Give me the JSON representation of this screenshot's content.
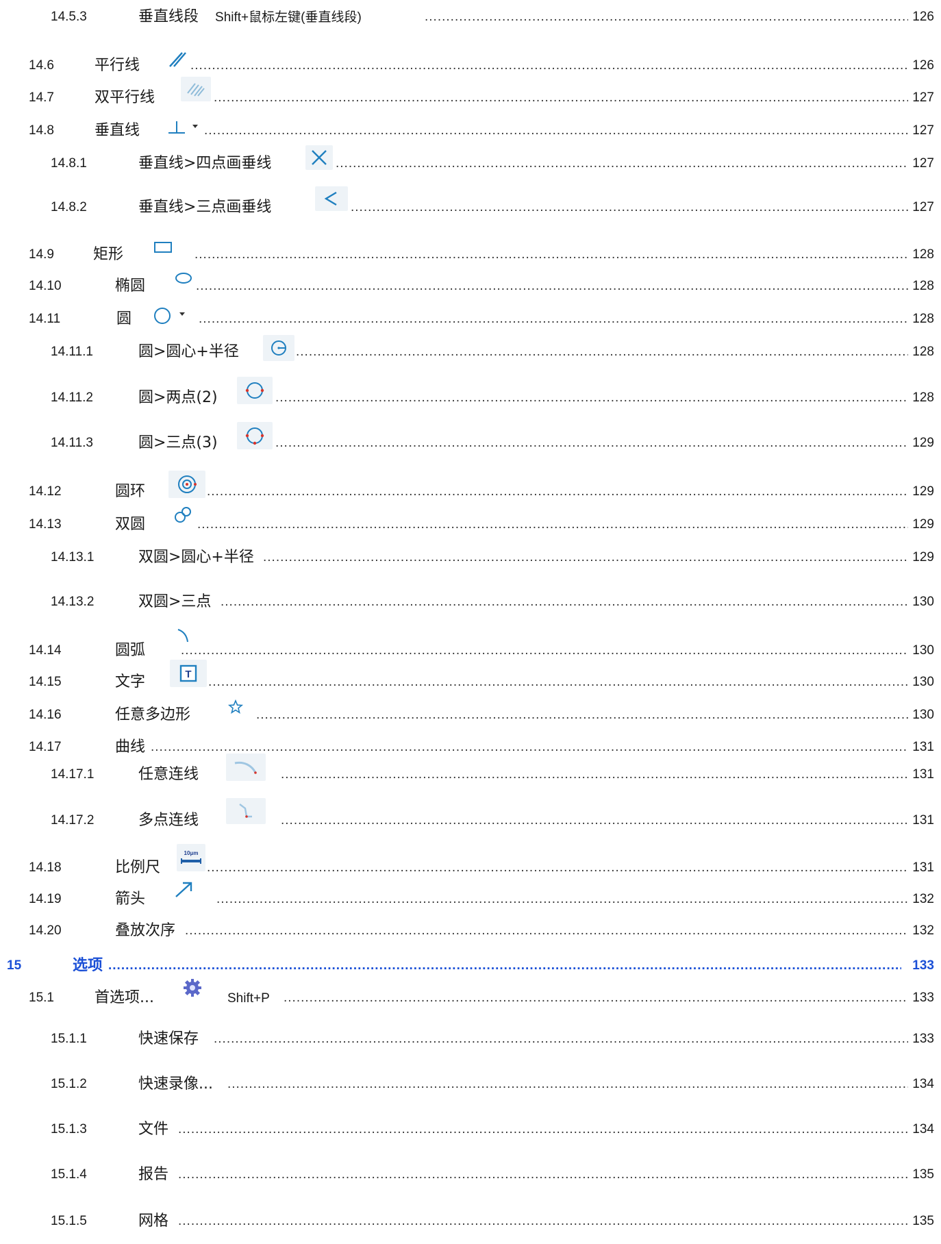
{
  "toc": [
    {
      "num": "14.5.3",
      "title": "垂直线段",
      "suffix": "Shift+鼠标左键(垂直线段)",
      "page": "126"
    },
    {
      "num": "14.6",
      "title": "平行线",
      "page": "126",
      "icon": "parallel-lines-icon"
    },
    {
      "num": "14.7",
      "title": "双平行线",
      "page": "127",
      "icon": "double-parallel-lines-icon"
    },
    {
      "num": "14.8",
      "title": "垂直线",
      "page": "127",
      "icon": "perpendicular-icon"
    },
    {
      "num": "14.8.1",
      "title": "垂直线>四点画垂线",
      "page": "127",
      "icon": "four-point-perpendicular-icon"
    },
    {
      "num": "14.8.2",
      "title": "垂直线>三点画垂线",
      "page": "127",
      "icon": "three-point-perpendicular-icon"
    },
    {
      "num": "14.9",
      "title": "矩形",
      "page": "128",
      "icon": "rectangle-icon"
    },
    {
      "num": "14.10",
      "title": "椭圆",
      "page": "128",
      "icon": "ellipse-icon"
    },
    {
      "num": "14.11",
      "title": "圆",
      "page": "128",
      "icon": "circle-icon"
    },
    {
      "num": "14.11.1",
      "title": "圆>圆心+半径",
      "page": "128",
      "icon": "circle-center-radius-icon"
    },
    {
      "num": "14.11.2",
      "title": "圆>两点(2)",
      "page": "128",
      "icon": "circle-two-point-icon"
    },
    {
      "num": "14.11.3",
      "title": "圆>三点(3)",
      "page": "129",
      "icon": "circle-three-point-icon"
    },
    {
      "num": "14.12",
      "title": "圆环",
      "page": "129",
      "icon": "ring-icon"
    },
    {
      "num": "14.13",
      "title": "双圆",
      "page": "129",
      "icon": "double-circle-icon"
    },
    {
      "num": "14.13.1",
      "title": "双圆>圆心+半径",
      "page": "129"
    },
    {
      "num": "14.13.2",
      "title": "双圆>三点",
      "page": "130"
    },
    {
      "num": "14.14",
      "title": "圆弧",
      "page": "130",
      "icon": "arc-icon"
    },
    {
      "num": "14.15",
      "title": "文字",
      "page": "130",
      "icon": "text-tool-icon"
    },
    {
      "num": "14.16",
      "title": "任意多边形",
      "page": "130",
      "icon": "polygon-star-icon"
    },
    {
      "num": "14.17",
      "title": "曲线",
      "page": "131"
    },
    {
      "num": "14.17.1",
      "title": "任意连线",
      "page": "131",
      "icon": "freehand-line-icon"
    },
    {
      "num": "14.17.2",
      "title": "多点连线",
      "page": "131",
      "icon": "multipoint-line-icon"
    },
    {
      "num": "14.18",
      "title": "比例尺",
      "page": "131",
      "icon": "scale-bar-icon",
      "icon_text": "10μm"
    },
    {
      "num": "14.19",
      "title": "箭头",
      "page": "132",
      "icon": "arrow-icon"
    },
    {
      "num": "14.20",
      "title": "叠放次序",
      "page": "132"
    },
    {
      "num": "15",
      "title": "选项",
      "page": "133"
    },
    {
      "num": "15.1",
      "title": "首选项...",
      "suffix": "Shift+P",
      "page": "133",
      "icon": "gear-icon"
    },
    {
      "num": "15.1.1",
      "title": "快速保存",
      "page": "133"
    },
    {
      "num": "15.1.2",
      "title": "快速录像...",
      "page": "134"
    },
    {
      "num": "15.1.3",
      "title": "文件",
      "page": "134"
    },
    {
      "num": "15.1.4",
      "title": "报告",
      "page": "135"
    },
    {
      "num": "15.1.5",
      "title": "网格",
      "page": "135"
    }
  ],
  "colors": {
    "heading": "#1a4fd6",
    "icon_blue": "#1f7fbf",
    "text": "#1a1a1a"
  }
}
